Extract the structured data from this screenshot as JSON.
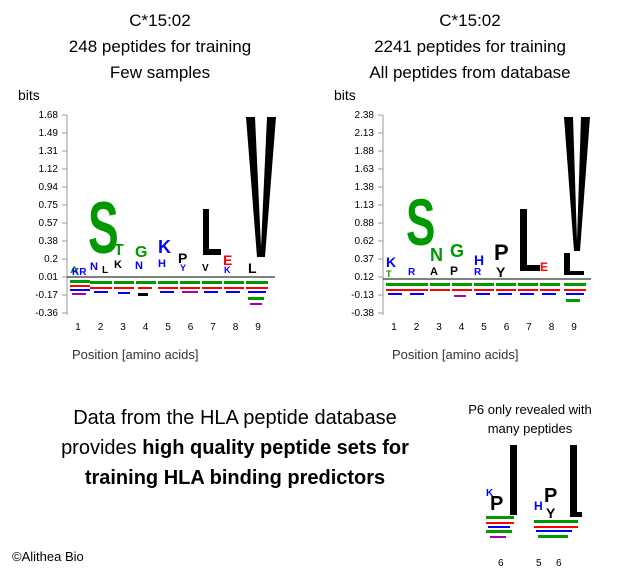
{
  "left": {
    "title": "C*15:02",
    "subtitle": "248 peptides for training",
    "note": "Few samples",
    "ylabel": "bits",
    "yticks": [
      "1.68",
      "1.49",
      "1.31",
      "1.12",
      "0.94",
      "0.75",
      "0.57",
      "0.38",
      "0.2",
      "0.01",
      "-0.17",
      "-0.36"
    ],
    "xticks": [
      "1",
      "2",
      "3",
      "4",
      "5",
      "6",
      "7",
      "8",
      "9"
    ],
    "xlabel": "Position [amino acids]"
  },
  "right": {
    "title": "C*15:02",
    "subtitle": "2241 peptides for training",
    "note": "All peptides from database",
    "ylabel": "bits",
    "yticks": [
      "2.38",
      "2.13",
      "1.88",
      "1.63",
      "1.38",
      "1.13",
      "0.88",
      "0.62",
      "0.37",
      "0.12",
      "-0.13",
      "-0.38"
    ],
    "xticks": [
      "1",
      "2",
      "3",
      "4",
      "5",
      "6",
      "7",
      "8",
      "9"
    ],
    "xlabel": "Position [amino acids]"
  },
  "caption": {
    "line1": "Data from the HLA peptide database",
    "line2_plain": "provides ",
    "line2_bold": "high quality peptide sets for",
    "line3_bold": "training HLA binding predictors"
  },
  "side_note": {
    "line1": "P6 only revealed with",
    "line2": "many peptides",
    "ticks_left": [
      "6"
    ],
    "ticks_right": [
      "5",
      "6"
    ]
  },
  "copyright": "©Alithea Bio",
  "colors": {
    "green": "#009900",
    "blue": "#0000ff",
    "red": "#ff0000",
    "black": "#000000",
    "purple": "#aa00aa"
  }
}
